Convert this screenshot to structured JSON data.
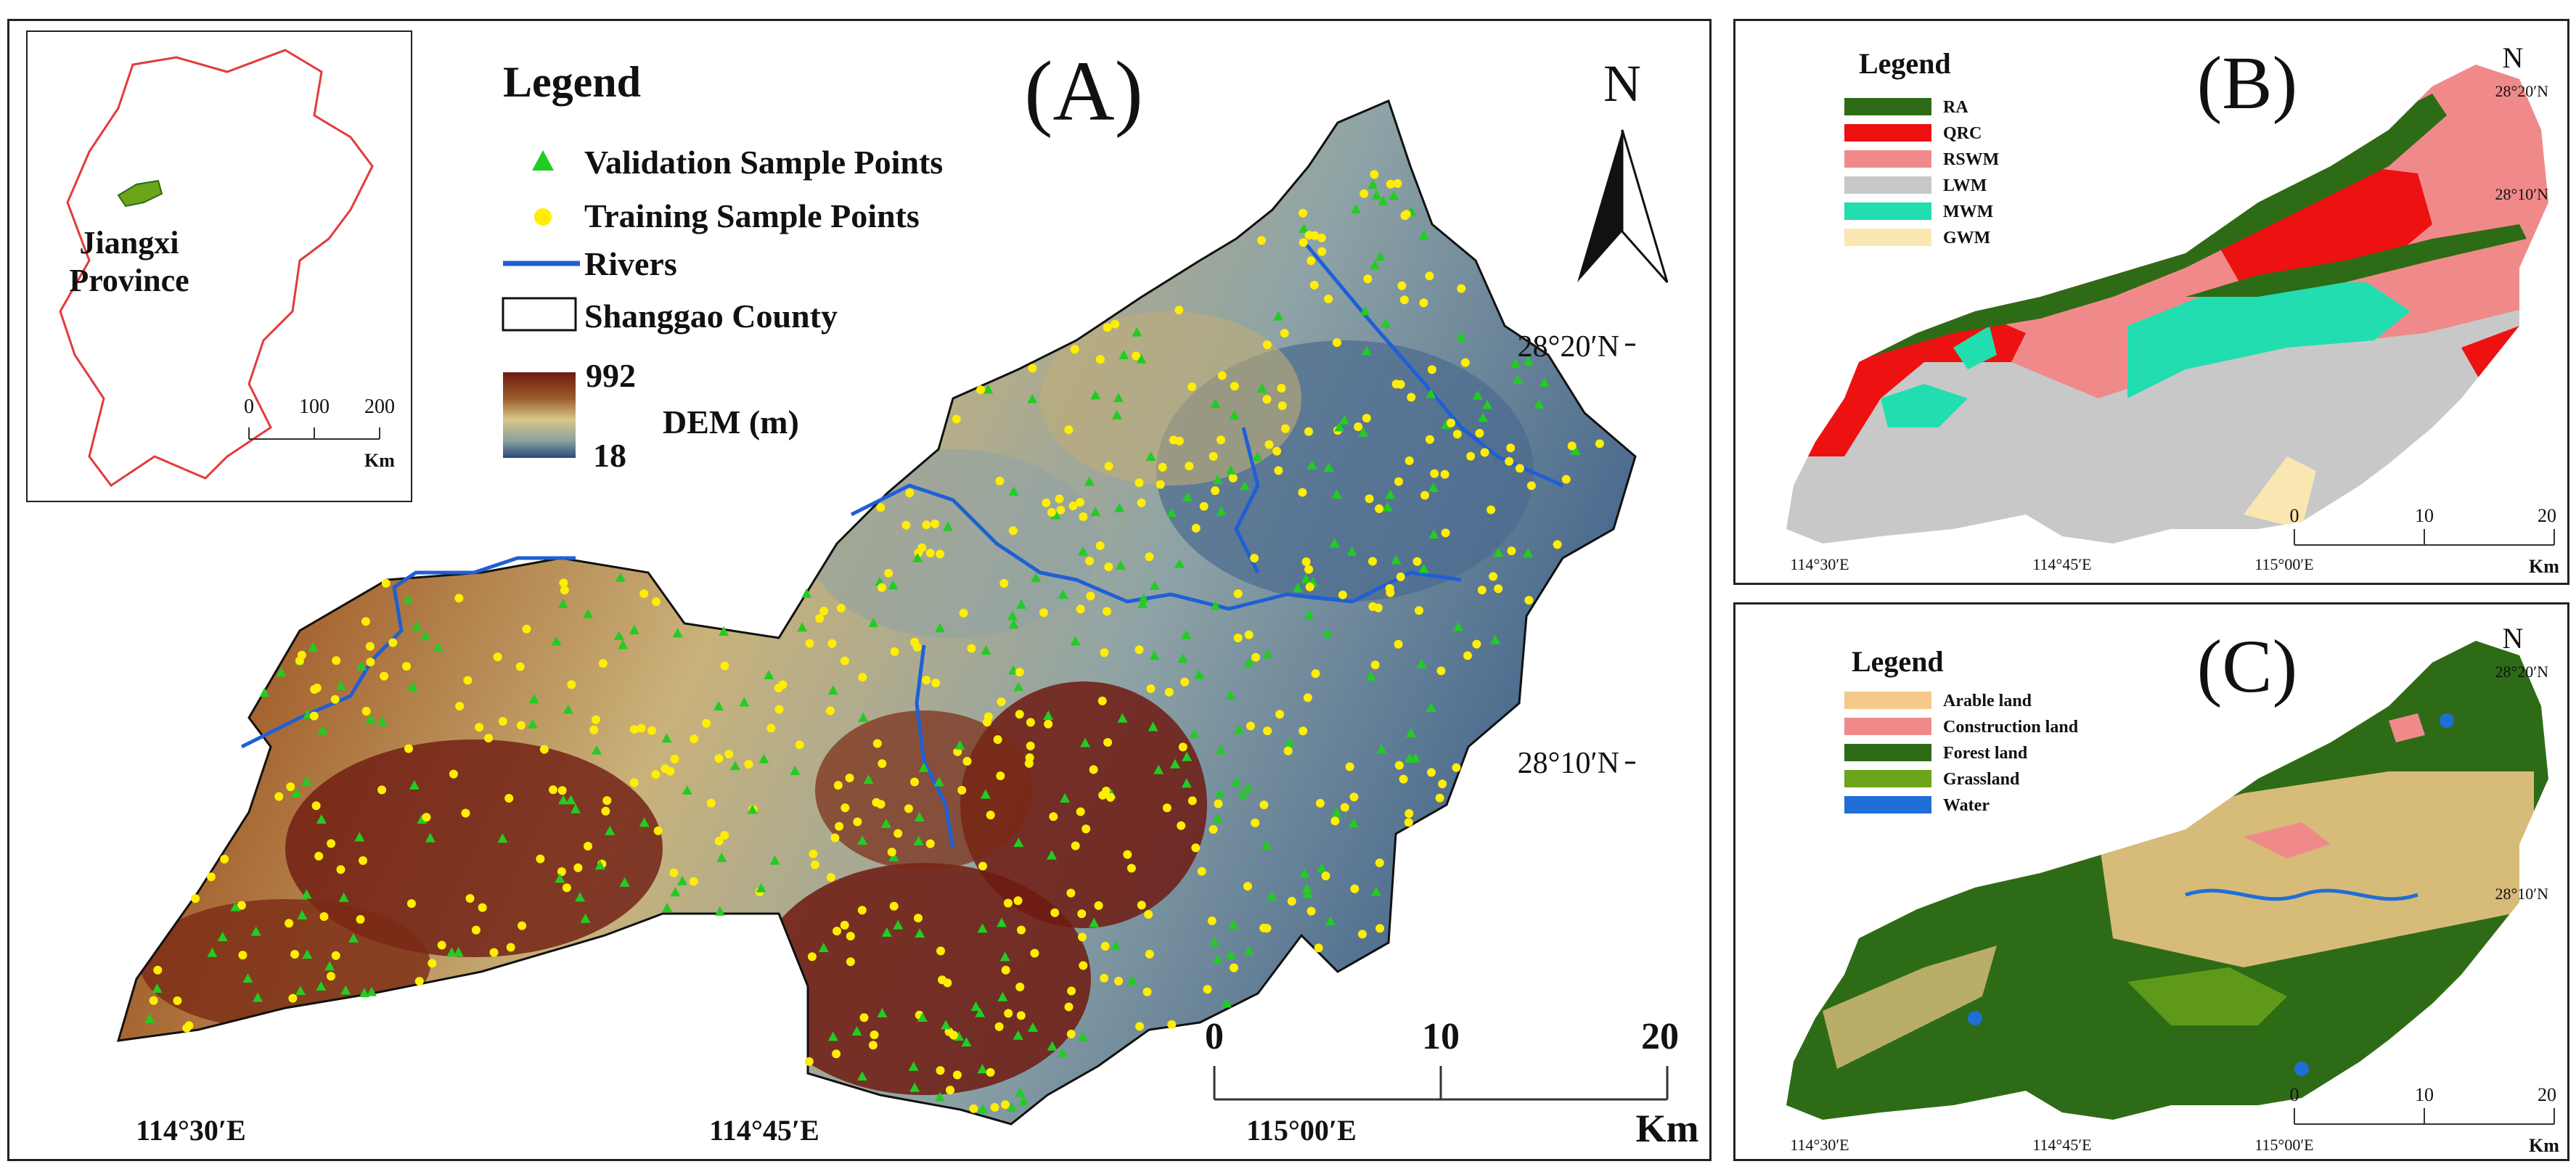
{
  "panel_a": {
    "label": "(A)",
    "legend_title": "Legend",
    "legend": {
      "validation": "Validation Sample Points",
      "training": "Training Sample Points",
      "rivers": "Rivers",
      "county": "Shanggao County",
      "dem_max": "992",
      "dem_min": "18",
      "dem_label": "DEM (m)"
    },
    "inset": {
      "province": "Jiangxi",
      "province2": "Province",
      "scale_ticks": [
        "0",
        "100",
        "200"
      ],
      "scale_unit": "Km"
    },
    "north": "N",
    "lat_labels": [
      "28°20′N",
      "28°10′N"
    ],
    "lon_labels": [
      "114°30′E",
      "114°45′E",
      "115°00′E"
    ],
    "scale_ticks": [
      "0",
      "10",
      "20"
    ],
    "scale_unit": "Km",
    "colors": {
      "validation": "#22cc22",
      "training": "#ffee00",
      "rivers": "#1f5fd6",
      "dem_high": "#6e1a10",
      "dem_mid": "#d8c88a",
      "dem_low": "#2a4a7a"
    }
  },
  "panel_b": {
    "label": "(B)",
    "legend_title": "Legend",
    "classes": [
      {
        "name": "RA",
        "color": "#2e6b16"
      },
      {
        "name": "QRC",
        "color": "#ee1111"
      },
      {
        "name": "RSWM",
        "color": "#f08a8a"
      },
      {
        "name": "LWM",
        "color": "#c8c8c8"
      },
      {
        "name": "MWM",
        "color": "#22ddb0"
      },
      {
        "name": "GWM",
        "color": "#fae6b0"
      }
    ],
    "north": "N",
    "lat_labels": [
      "28°20′N",
      "28°10′N"
    ],
    "lon_labels": [
      "114°30′E",
      "114°45′E",
      "115°00′E"
    ],
    "scale_ticks": [
      "0",
      "10",
      "20"
    ],
    "scale_unit": "Km"
  },
  "panel_c": {
    "label": "(C)",
    "legend_title": "Legend",
    "classes": [
      {
        "name": "Arable land",
        "color": "#f5c98a"
      },
      {
        "name": "Construction land",
        "color": "#f08a8a"
      },
      {
        "name": "Forest land",
        "color": "#2e6b16"
      },
      {
        "name": "Grassland",
        "color": "#6aa51a"
      },
      {
        "name": "Water",
        "color": "#1f6fd6"
      }
    ],
    "north": "N",
    "lat_labels": [
      "28°20′N",
      "28°10′N"
    ],
    "lon_labels": [
      "114°30′E",
      "114°45′E",
      "115°00′E"
    ],
    "scale_ticks": [
      "0",
      "10",
      "20"
    ],
    "scale_unit": "Km"
  }
}
